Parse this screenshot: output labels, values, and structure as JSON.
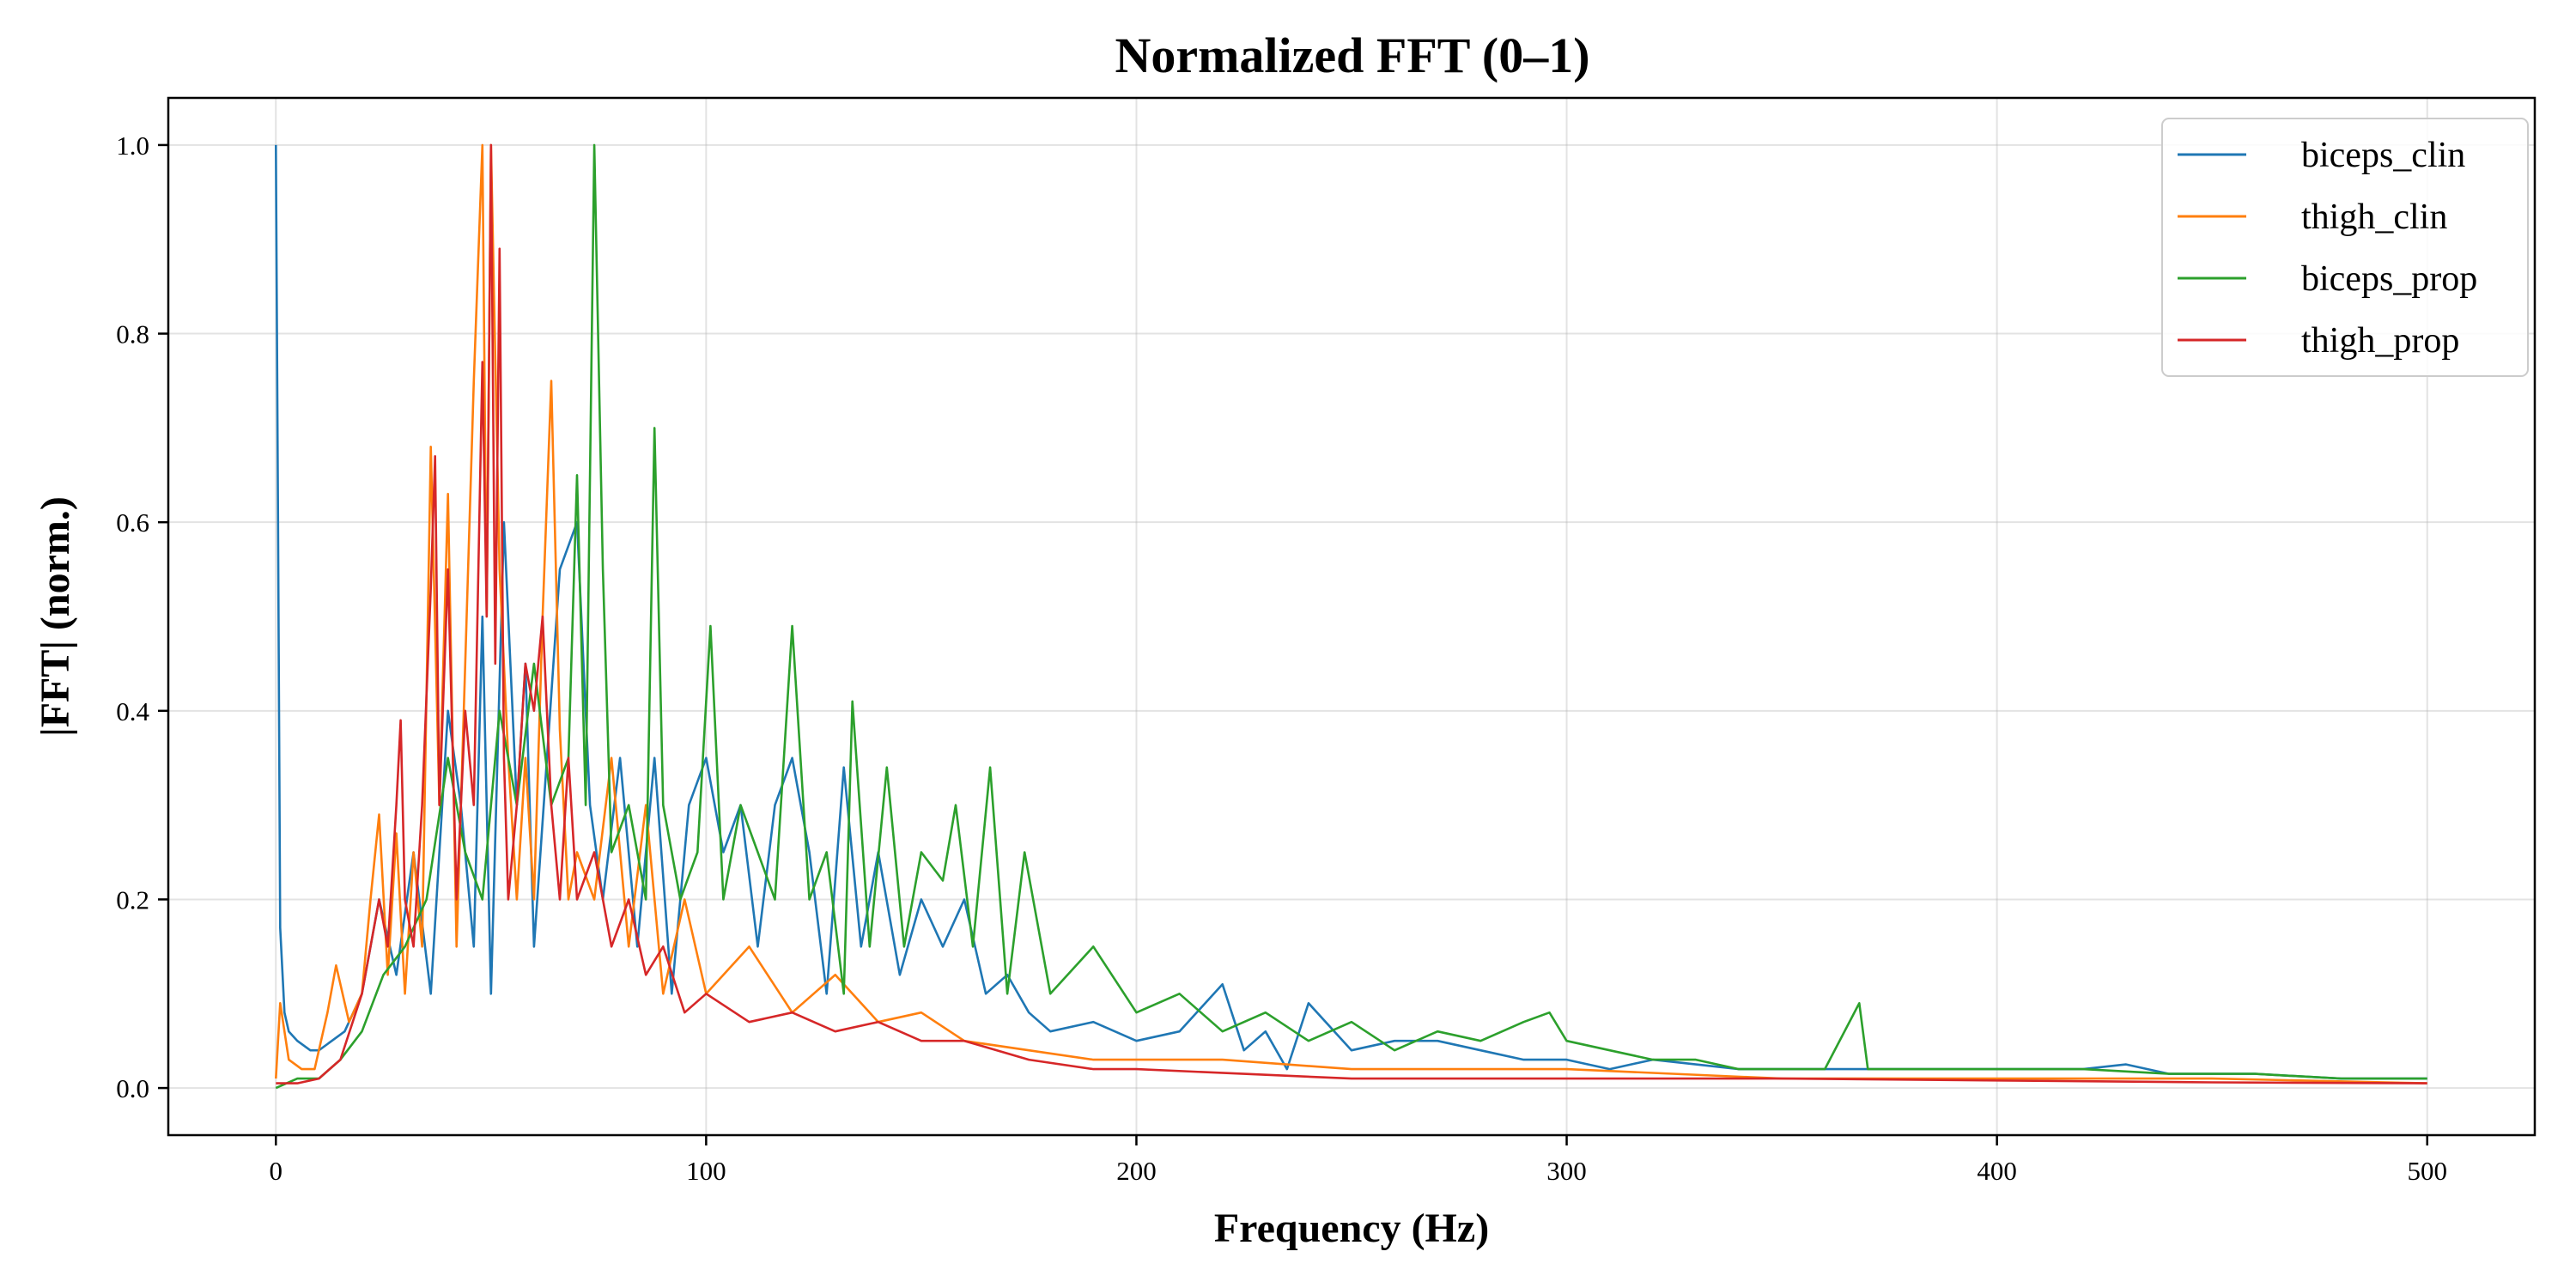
{
  "chart_data": {
    "type": "line",
    "title": "Normalized FFT (0–1)",
    "xlabel": "Frequency (Hz)",
    "ylabel": "|FFT| (norm.)",
    "xlim": [
      -25,
      525
    ],
    "ylim": [
      -0.05,
      1.05
    ],
    "xticks": [
      0,
      100,
      200,
      300,
      400,
      500
    ],
    "yticks": [
      0.0,
      0.2,
      0.4,
      0.6,
      0.8,
      1.0
    ],
    "xtick_labels": [
      "0",
      "100",
      "200",
      "300",
      "400",
      "500"
    ],
    "ytick_labels": [
      "0.0",
      "0.2",
      "0.4",
      "0.6",
      "0.8",
      "1.0"
    ],
    "grid": true,
    "legend_position": "top-right",
    "series": [
      {
        "name": "biceps_clin",
        "color": "#1f77b4",
        "x": [
          0,
          0.5,
          1,
          2,
          3,
          5,
          8,
          10,
          13,
          16,
          20,
          24,
          28,
          32,
          36,
          40,
          43,
          46,
          48,
          50,
          53,
          56,
          58,
          60,
          63,
          66,
          70,
          73,
          76,
          80,
          84,
          88,
          92,
          96,
          100,
          104,
          108,
          112,
          116,
          120,
          124,
          128,
          132,
          136,
          140,
          145,
          150,
          155,
          160,
          165,
          170,
          175,
          180,
          190,
          200,
          210,
          220,
          225,
          230,
          235,
          240,
          250,
          260,
          270,
          280,
          290,
          300,
          310,
          320,
          340,
          360,
          380,
          400,
          420,
          430,
          440,
          460,
          480,
          500
        ],
        "values": [
          1.0,
          0.6,
          0.17,
          0.08,
          0.06,
          0.05,
          0.04,
          0.04,
          0.05,
          0.06,
          0.1,
          0.2,
          0.12,
          0.25,
          0.1,
          0.4,
          0.3,
          0.15,
          0.5,
          0.1,
          0.6,
          0.3,
          0.45,
          0.15,
          0.35,
          0.55,
          0.6,
          0.3,
          0.2,
          0.35,
          0.15,
          0.35,
          0.1,
          0.3,
          0.35,
          0.25,
          0.3,
          0.15,
          0.3,
          0.35,
          0.25,
          0.1,
          0.34,
          0.15,
          0.25,
          0.12,
          0.2,
          0.15,
          0.2,
          0.1,
          0.12,
          0.08,
          0.06,
          0.07,
          0.05,
          0.06,
          0.11,
          0.04,
          0.06,
          0.02,
          0.09,
          0.04,
          0.05,
          0.05,
          0.04,
          0.03,
          0.03,
          0.02,
          0.03,
          0.02,
          0.02,
          0.02,
          0.02,
          0.02,
          0.025,
          0.015,
          0.015,
          0.01,
          0.01
        ]
      },
      {
        "name": "thigh_clin",
        "color": "#ff7f0e",
        "x": [
          0,
          1,
          3,
          6,
          9,
          12,
          14,
          17,
          20,
          22,
          24,
          26,
          28,
          30,
          32,
          34,
          36,
          38,
          40,
          42,
          44,
          46,
          48,
          49,
          50,
          52,
          54,
          56,
          58,
          60,
          62,
          64,
          66,
          68,
          70,
          74,
          78,
          82,
          86,
          90,
          95,
          100,
          110,
          120,
          130,
          140,
          150,
          160,
          175,
          190,
          200,
          220,
          250,
          300,
          350,
          400,
          450,
          500
        ],
        "values": [
          0.01,
          0.09,
          0.03,
          0.02,
          0.02,
          0.08,
          0.13,
          0.07,
          0.1,
          0.2,
          0.29,
          0.12,
          0.27,
          0.1,
          0.25,
          0.15,
          0.68,
          0.3,
          0.63,
          0.15,
          0.45,
          0.75,
          1.0,
          0.5,
          1.0,
          0.55,
          0.35,
          0.2,
          0.35,
          0.2,
          0.5,
          0.75,
          0.38,
          0.2,
          0.25,
          0.2,
          0.35,
          0.15,
          0.3,
          0.1,
          0.2,
          0.1,
          0.15,
          0.08,
          0.12,
          0.07,
          0.08,
          0.05,
          0.04,
          0.03,
          0.03,
          0.03,
          0.02,
          0.02,
          0.01,
          0.01,
          0.01,
          0.005
        ]
      },
      {
        "name": "biceps_prop",
        "color": "#2ca02c",
        "x": [
          0,
          5,
          10,
          15,
          20,
          25,
          30,
          35,
          40,
          44,
          48,
          52,
          56,
          60,
          64,
          68,
          70,
          72,
          74,
          76,
          78,
          82,
          86,
          88,
          90,
          94,
          98,
          101,
          104,
          108,
          112,
          116,
          120,
          124,
          128,
          132,
          134,
          138,
          142,
          146,
          150,
          155,
          158,
          162,
          166,
          170,
          174,
          180,
          190,
          200,
          210,
          220,
          230,
          240,
          250,
          260,
          270,
          280,
          290,
          296,
          300,
          310,
          320,
          330,
          340,
          350,
          360,
          368,
          370,
          380,
          400,
          420,
          440,
          460,
          480,
          500
        ],
        "values": [
          0.0,
          0.01,
          0.01,
          0.03,
          0.06,
          0.12,
          0.15,
          0.2,
          0.35,
          0.25,
          0.2,
          0.4,
          0.3,
          0.45,
          0.3,
          0.35,
          0.65,
          0.3,
          1.0,
          0.55,
          0.25,
          0.3,
          0.2,
          0.7,
          0.3,
          0.2,
          0.25,
          0.49,
          0.2,
          0.3,
          0.25,
          0.2,
          0.49,
          0.2,
          0.25,
          0.1,
          0.41,
          0.15,
          0.34,
          0.15,
          0.25,
          0.22,
          0.3,
          0.15,
          0.34,
          0.1,
          0.25,
          0.1,
          0.15,
          0.08,
          0.1,
          0.06,
          0.08,
          0.05,
          0.07,
          0.04,
          0.06,
          0.05,
          0.07,
          0.08,
          0.05,
          0.04,
          0.03,
          0.03,
          0.02,
          0.02,
          0.02,
          0.09,
          0.02,
          0.02,
          0.02,
          0.02,
          0.015,
          0.015,
          0.01,
          0.01
        ]
      },
      {
        "name": "thigh_prop",
        "color": "#d62728",
        "x": [
          0,
          5,
          10,
          15,
          20,
          24,
          26,
          28,
          29,
          30,
          32,
          34,
          36,
          37,
          38,
          40,
          42,
          44,
          46,
          48,
          49,
          50,
          51,
          52,
          53,
          54,
          56,
          58,
          60,
          62,
          64,
          66,
          68,
          70,
          74,
          78,
          82,
          86,
          90,
          95,
          100,
          110,
          120,
          130,
          140,
          150,
          160,
          175,
          190,
          200,
          225,
          250,
          275,
          300,
          350,
          400,
          450,
          500
        ],
        "values": [
          0.005,
          0.005,
          0.01,
          0.03,
          0.1,
          0.2,
          0.15,
          0.3,
          0.39,
          0.2,
          0.15,
          0.3,
          0.53,
          0.67,
          0.3,
          0.55,
          0.2,
          0.4,
          0.3,
          0.77,
          0.5,
          1.0,
          0.45,
          0.89,
          0.35,
          0.2,
          0.3,
          0.45,
          0.4,
          0.5,
          0.3,
          0.2,
          0.35,
          0.2,
          0.25,
          0.15,
          0.2,
          0.12,
          0.15,
          0.08,
          0.1,
          0.07,
          0.08,
          0.06,
          0.07,
          0.05,
          0.05,
          0.03,
          0.02,
          0.02,
          0.015,
          0.01,
          0.01,
          0.01,
          0.01,
          0.008,
          0.006,
          0.005
        ]
      }
    ]
  }
}
